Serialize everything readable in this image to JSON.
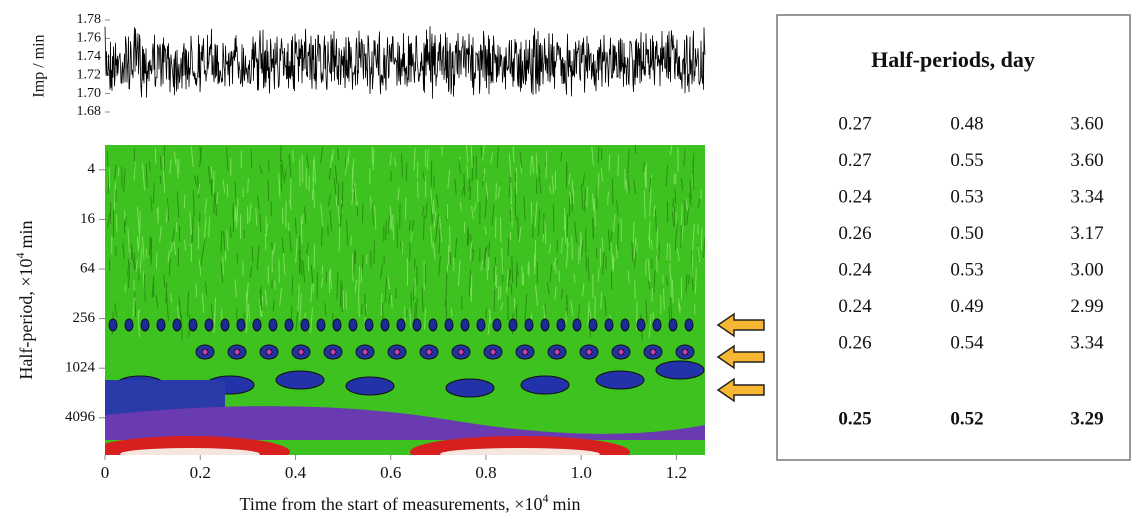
{
  "signal_panel": {
    "ylabel": "Imp / min",
    "ylim": [
      1.68,
      1.78
    ],
    "yticks": [
      1.68,
      {
        "value": 1.7,
        "label": "1.70"
      },
      1.72,
      1.74,
      1.76,
      1.78
    ]
  },
  "wavelet_panel": {
    "ylabel": {
      "text": "Half-period, ×10",
      "superscript": "4",
      "unit": "min"
    },
    "log_base": 4,
    "ylim": [
      2,
      11585
    ],
    "yticks": [
      4,
      16,
      64,
      256,
      1024,
      4096
    ]
  },
  "x_axis": {
    "label": {
      "text": "Time from the start of measurements, ×10",
      "superscript": "4",
      "unit": "min"
    },
    "xlim": [
      0,
      1.26
    ],
    "xticks": [
      0,
      0.2,
      0.4,
      0.6,
      0.8,
      {
        "value": 1,
        "label": "1.0"
      },
      1.2
    ]
  },
  "table": {
    "title": "Half-periods, day",
    "rows": [
      [
        "0.27",
        "0.48",
        "3.60"
      ],
      [
        "0.27",
        "0.55",
        "3.60"
      ],
      [
        "0.24",
        "0.53",
        "3.34"
      ],
      [
        "0.26",
        "0.50",
        "3.17"
      ],
      [
        "0.24",
        "0.53",
        "3.00"
      ],
      [
        "0.24",
        "0.49",
        "2.99"
      ],
      [
        "0.26",
        "0.54",
        "3.34"
      ]
    ],
    "summary": [
      "0.25",
      "0.52",
      "3.29"
    ]
  }
}
